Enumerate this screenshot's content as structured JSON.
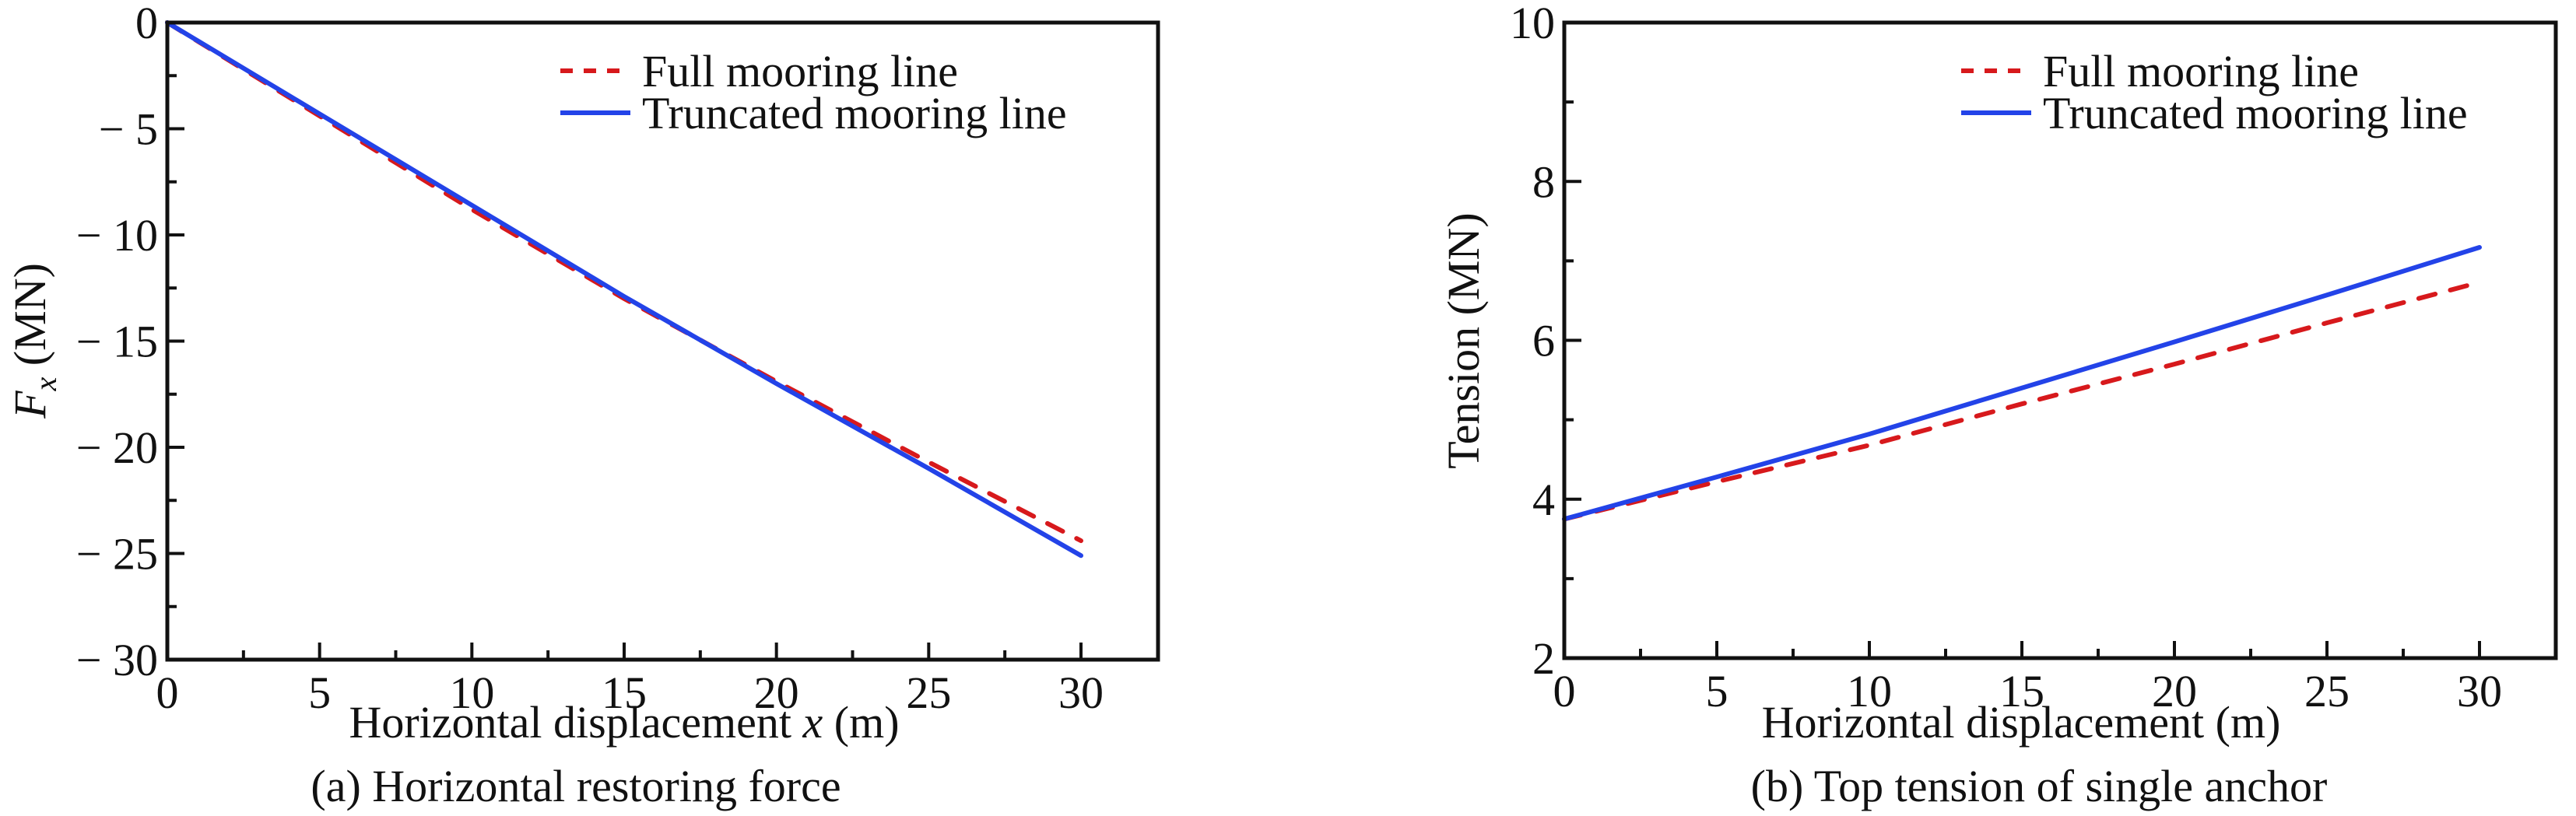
{
  "chart_data": [
    {
      "type": "line",
      "caption": "(a) Horizontal restoring force",
      "xlabel": "Horizontal displacement x (m)",
      "xlabel_parts": {
        "before": "Horizontal displacement ",
        "italic": "x",
        "after": " (m)"
      },
      "ylabel": "F_x (MN)",
      "ylabel_parts": {
        "main": "F",
        "sub": "x",
        "unit": " (MN)"
      },
      "xlim": [
        0,
        32.5
      ],
      "ylim": [
        -30,
        0
      ],
      "xticks": [
        0,
        5,
        10,
        15,
        20,
        25,
        30
      ],
      "xtick_labels": [
        "0",
        "5",
        "10",
        "15",
        "20",
        "25",
        "30"
      ],
      "yticks": [
        0,
        -5,
        -10,
        -15,
        -20,
        -25,
        -30
      ],
      "ytick_labels": [
        "0",
        "− 5",
        "− 10",
        "− 15",
        "− 20",
        "− 25",
        "− 30"
      ],
      "grid": false,
      "legend_position": "top-right",
      "series": [
        {
          "name": "Full mooring line",
          "style": "dashed",
          "color": "#d7191c",
          "x": [
            0,
            5,
            10,
            15,
            20,
            25,
            30
          ],
          "y": [
            0,
            -4.4,
            -8.8,
            -13.0,
            -16.9,
            -20.7,
            -24.4
          ]
        },
        {
          "name": "Truncated mooring line",
          "style": "solid",
          "color": "#2343e8",
          "x": [
            0,
            5,
            10,
            15,
            20,
            25,
            30
          ],
          "y": [
            0,
            -4.3,
            -8.6,
            -12.9,
            -17.0,
            -21.0,
            -25.1
          ]
        }
      ]
    },
    {
      "type": "line",
      "caption": "(b) Top tension of single anchor",
      "xlabel": "Horizontal displacement (m)",
      "ylabel": "Tension (MN)",
      "xlim": [
        0,
        32.5
      ],
      "ylim": [
        2,
        10
      ],
      "xticks": [
        0,
        5,
        10,
        15,
        20,
        25,
        30
      ],
      "xtick_labels": [
        "0",
        "5",
        "10",
        "15",
        "20",
        "25",
        "30"
      ],
      "yticks": [
        2,
        4,
        6,
        8,
        10
      ],
      "ytick_labels": [
        "2",
        "4",
        "6",
        "8",
        "10"
      ],
      "grid": false,
      "legend_position": "top-right",
      "series": [
        {
          "name": "Full mooring line",
          "style": "dashed",
          "color": "#d7191c",
          "x": [
            0,
            5,
            10,
            15,
            20,
            25,
            30
          ],
          "y": [
            3.75,
            4.22,
            4.68,
            5.2,
            5.7,
            6.22,
            6.73
          ]
        },
        {
          "name": "Truncated mooring line",
          "style": "solid",
          "color": "#2343e8",
          "x": [
            0,
            5,
            10,
            15,
            20,
            25,
            30
          ],
          "y": [
            3.75,
            4.28,
            4.82,
            5.4,
            5.98,
            6.57,
            7.17
          ]
        }
      ]
    }
  ]
}
